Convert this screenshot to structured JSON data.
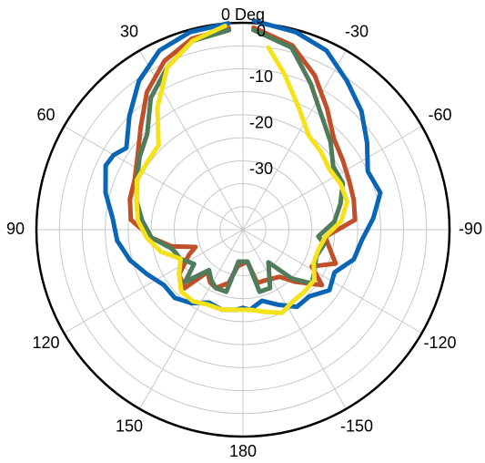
{
  "chart_data": {
    "type": "polar-line",
    "title": "",
    "angle_unit": "degrees",
    "angle_direction": "counterclockwise (positive angles to the left), 0 at top",
    "angle_ticks": [
      {
        "deg": 0,
        "label": "0 Deg"
      },
      {
        "deg": 30,
        "label": "30"
      },
      {
        "deg": -30,
        "label": "-30"
      },
      {
        "deg": 60,
        "label": "60"
      },
      {
        "deg": -60,
        "label": "-60"
      },
      {
        "deg": 90,
        "label": "90"
      },
      {
        "deg": -90,
        "label": "-90"
      },
      {
        "deg": 120,
        "label": "120"
      },
      {
        "deg": -120,
        "label": "-120"
      },
      {
        "deg": 150,
        "label": "150"
      },
      {
        "deg": -150,
        "label": "-150"
      },
      {
        "deg": 180,
        "label": "180"
      }
    ],
    "radial_range_db": [
      -45,
      0
    ],
    "radial_grid_step_db": 5,
    "radial_tick_labels": [
      {
        "value": 0,
        "label": "0"
      },
      {
        "value": -10,
        "label": "-10"
      },
      {
        "value": -20,
        "label": "-20"
      },
      {
        "value": -30,
        "label": "-30"
      }
    ],
    "grid": true,
    "legend": "none",
    "series": [
      {
        "color": "#0a65b5",
        "points": [
          [
            -3,
            0.5
          ],
          [
            -15,
            -0.5
          ],
          [
            -25,
            -2
          ],
          [
            -35,
            -5.5
          ],
          [
            -45,
            -8.5
          ],
          [
            -55,
            -12
          ],
          [
            -65,
            -15
          ],
          [
            -75,
            -14
          ],
          [
            -85,
            -16.5
          ],
          [
            -95,
            -19
          ],
          [
            -105,
            -20
          ],
          [
            -115,
            -23
          ],
          [
            -125,
            -22
          ],
          [
            -135,
            -24.5
          ],
          [
            -145,
            -24.5
          ],
          [
            -155,
            -27
          ],
          [
            -165,
            -29
          ],
          [
            -175,
            -27.5
          ],
          [
            180,
            -28
          ],
          [
            175,
            -27.5
          ],
          [
            165,
            -27
          ],
          [
            155,
            -27.5
          ],
          [
            145,
            -25.5
          ],
          [
            135,
            -24
          ],
          [
            125,
            -24
          ],
          [
            115,
            -22
          ],
          [
            105,
            -19.5
          ],
          [
            95,
            -17.5
          ],
          [
            85,
            -16.5
          ],
          [
            75,
            -14
          ],
          [
            65,
            -12
          ],
          [
            60,
            -12.5
          ],
          [
            55,
            -14
          ],
          [
            45,
            -10
          ],
          [
            35,
            -5.5
          ],
          [
            25,
            -2
          ],
          [
            15,
            -0.5
          ],
          [
            4,
            0
          ]
        ]
      },
      {
        "color": "#c0502a",
        "points": [
          [
            -3,
            -1
          ],
          [
            -15,
            -3.5
          ],
          [
            -25,
            -8
          ],
          [
            -35,
            -13
          ],
          [
            -45,
            -17
          ],
          [
            -55,
            -18.5
          ],
          [
            -65,
            -19.5
          ],
          [
            -75,
            -20
          ],
          [
            -85,
            -20.5
          ],
          [
            -95,
            -27
          ],
          [
            -105,
            -25
          ],
          [
            -110,
            -23.5
          ],
          [
            -118,
            -28
          ],
          [
            -125,
            -24
          ],
          [
            -135,
            -29
          ],
          [
            -142,
            -32
          ],
          [
            -158,
            -33
          ],
          [
            -165,
            -33
          ],
          [
            -172,
            -38
          ],
          [
            172,
            -37
          ],
          [
            165,
            -33
          ],
          [
            155,
            -31
          ],
          [
            148,
            -31.5
          ],
          [
            140,
            -33
          ],
          [
            135,
            -27
          ],
          [
            125,
            -28
          ],
          [
            115,
            -32
          ],
          [
            110,
            -34
          ],
          [
            103,
            -29
          ],
          [
            95,
            -25
          ],
          [
            85,
            -20.5
          ],
          [
            75,
            -19.5
          ],
          [
            65,
            -19
          ],
          [
            55,
            -17
          ],
          [
            45,
            -13.5
          ],
          [
            35,
            -8.5
          ],
          [
            25,
            -4.5
          ],
          [
            15,
            -2
          ],
          [
            4,
            -1
          ]
        ]
      },
      {
        "color": "#4f7c5a",
        "points": [
          [
            -3,
            -1.5
          ],
          [
            -15,
            -4
          ],
          [
            -25,
            -10
          ],
          [
            -35,
            -15
          ],
          [
            -45,
            -18
          ],
          [
            -55,
            -21
          ],
          [
            -65,
            -21
          ],
          [
            -75,
            -23
          ],
          [
            -85,
            -25
          ],
          [
            -95,
            -28.5
          ],
          [
            -100,
            -27
          ],
          [
            -110,
            -28
          ],
          [
            -120,
            -27
          ],
          [
            -128,
            -26
          ],
          [
            -135,
            -30
          ],
          [
            -142,
            -36
          ],
          [
            -155,
            -31
          ],
          [
            -165,
            -31
          ],
          [
            -172,
            -38
          ],
          [
            172,
            -38
          ],
          [
            165,
            -31
          ],
          [
            155,
            -31
          ],
          [
            148,
            -32
          ],
          [
            140,
            -33.5
          ],
          [
            132,
            -28
          ],
          [
            125,
            -32
          ],
          [
            115,
            -30
          ],
          [
            105,
            -29
          ],
          [
            95,
            -25
          ],
          [
            85,
            -23
          ],
          [
            75,
            -21
          ],
          [
            65,
            -19.5
          ],
          [
            55,
            -17.5
          ],
          [
            45,
            -15.5
          ],
          [
            35,
            -10
          ],
          [
            25,
            -6
          ],
          [
            15,
            -2.5
          ],
          [
            4,
            -1.5
          ]
        ]
      },
      {
        "color": "#f6e21a",
        "points": [
          [
            -8,
            -5
          ],
          [
            -15,
            -10
          ],
          [
            -25,
            -16
          ],
          [
            -35,
            -20
          ],
          [
            -45,
            -21
          ],
          [
            -55,
            -22
          ],
          [
            -65,
            -21.5
          ],
          [
            -75,
            -21.5
          ],
          [
            -85,
            -23.5
          ],
          [
            -95,
            -27
          ],
          [
            -105,
            -28
          ],
          [
            -115,
            -28
          ],
          [
            -125,
            -26
          ],
          [
            -135,
            -26
          ],
          [
            -145,
            -26
          ],
          [
            -155,
            -25
          ],
          [
            -165,
            -26.5
          ],
          [
            -175,
            -27.5
          ],
          [
            175,
            -27.5
          ],
          [
            165,
            -27
          ],
          [
            155,
            -27
          ],
          [
            145,
            -26
          ],
          [
            135,
            -26
          ],
          [
            125,
            -28
          ],
          [
            115,
            -30
          ],
          [
            105,
            -26.5
          ],
          [
            95,
            -24
          ],
          [
            85,
            -22
          ],
          [
            75,
            -21
          ],
          [
            65,
            -19.5
          ],
          [
            55,
            -19.5
          ],
          [
            45,
            -19
          ],
          [
            35,
            -12.5
          ],
          [
            25,
            -6
          ],
          [
            15,
            -2.5
          ],
          [
            5,
            -0.5
          ]
        ]
      }
    ]
  }
}
